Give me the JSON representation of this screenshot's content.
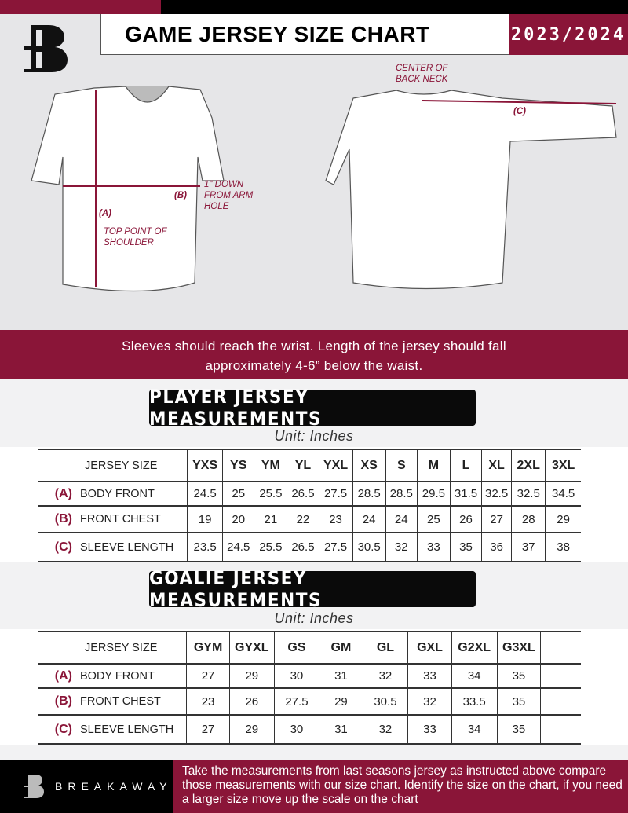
{
  "header": {
    "title": "GAME JERSEY SIZE CHART",
    "season": "2023/2024",
    "logo_letter": "B"
  },
  "diagram": {
    "center_back_neck": "CENTER OF BACK NECK",
    "label_a": "(A)",
    "label_b": "(B)",
    "label_c": "(C)",
    "one_inch_down": "1\" DOWN FROM ARM HOLE",
    "top_point": "TOP POINT OF SHOULDER"
  },
  "banner": {
    "line1": "Sleeves should reach the wrist. Length of the jersey should fall",
    "line2": "approximately 4-6” below the waist."
  },
  "player": {
    "title": "PLAYER JERSEY MEASUREMENTS",
    "unit": "Unit: Inches",
    "size_label": "JERSEY SIZE",
    "sizes": [
      "YXS",
      "YS",
      "YM",
      "YL",
      "YXL",
      "XS",
      "S",
      "M",
      "L",
      "XL",
      "2XL",
      "3XL"
    ],
    "rows": [
      {
        "letter": "(A)",
        "name": "BODY FRONT",
        "values": [
          "24.5",
          "25",
          "25.5",
          "26.5",
          "27.5",
          "28.5",
          "28.5",
          "29.5",
          "31.5",
          "32.5",
          "32.5",
          "34.5"
        ]
      },
      {
        "letter": "(B)",
        "name": "FRONT CHEST",
        "values": [
          "19",
          "20",
          "21",
          "22",
          "23",
          "24",
          "24",
          "25",
          "26",
          "27",
          "28",
          "29"
        ]
      },
      {
        "letter": "(C)",
        "name": "SLEEVE LENGTH",
        "values": [
          "23.5",
          "24.5",
          "25.5",
          "26.5",
          "27.5",
          "30.5",
          "32",
          "33",
          "35",
          "36",
          "37",
          "38"
        ]
      }
    ]
  },
  "goalie": {
    "title": "GOALIE JERSEY MEASUREMENTS",
    "unit": "Unit: Inches",
    "size_label": "JERSEY SIZE",
    "sizes": [
      "GYM",
      "GYXL",
      "GS",
      "GM",
      "GL",
      "GXL",
      "G2XL",
      "G3XL",
      ""
    ],
    "rows": [
      {
        "letter": "(A)",
        "name": "BODY FRONT",
        "values": [
          "27",
          "29",
          "30",
          "31",
          "32",
          "33",
          "34",
          "35",
          ""
        ]
      },
      {
        "letter": "(B)",
        "name": "FRONT CHEST",
        "values": [
          "23",
          "26",
          "27.5",
          "29",
          "30.5",
          "32",
          "33.5",
          "35",
          ""
        ]
      },
      {
        "letter": "(C)",
        "name": "SLEEVE LENGTH",
        "values": [
          "27",
          "29",
          "30",
          "31",
          "32",
          "33",
          "34",
          "35",
          ""
        ]
      }
    ]
  },
  "footer": {
    "brand": "BREAKAWAY",
    "text": "Take the measurements from last seasons jersey as instructed above compare those measurements  with our size chart. Identify the size on the chart, if you need a larger size move up the scale on the chart"
  },
  "colors": {
    "maroon": "#8a1538",
    "black": "#000000",
    "gray": "#e6e6e8"
  }
}
